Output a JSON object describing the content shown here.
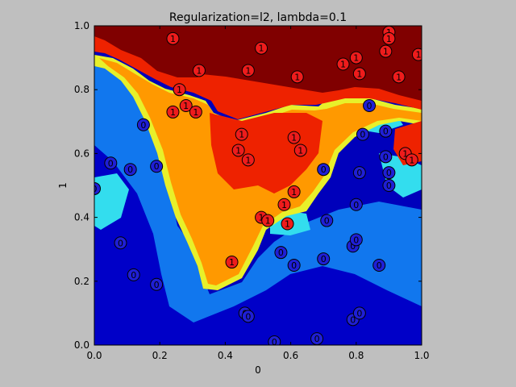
{
  "chart_data": {
    "type": "scatter",
    "title": "Regularization=l2, lambda=0.1",
    "xlabel": "0",
    "ylabel": "1",
    "xlim": [
      0.0,
      1.0
    ],
    "ylim": [
      0.0,
      1.0
    ],
    "xticks": [
      "0.0",
      "0.2",
      "0.4",
      "0.6",
      "0.8",
      "1.0"
    ],
    "yticks": [
      "0.0",
      "0.2",
      "0.4",
      "0.6",
      "0.8",
      "1.0"
    ],
    "grid": false,
    "legend": "none",
    "background_regions": {
      "description_colors": {
        "class_1_high": "#800000",
        "class_1_mid": "#ee2200",
        "class_1_low": "#ff9900",
        "boundary": "#e8f02a",
        "class_0_low": "#33ddee",
        "class_0_mid": "#1177ee",
        "class_0_high": "#0000bb"
      }
    },
    "series": [
      {
        "name": "0",
        "color": "#1f1fd6",
        "points": [
          [
            0.0,
            0.49
          ],
          [
            0.05,
            0.57
          ],
          [
            0.11,
            0.55
          ],
          [
            0.19,
            0.56
          ],
          [
            0.15,
            0.69
          ],
          [
            0.08,
            0.32
          ],
          [
            0.12,
            0.22
          ],
          [
            0.19,
            0.19
          ],
          [
            0.46,
            0.1
          ],
          [
            0.47,
            0.09
          ],
          [
            0.55,
            0.01
          ],
          [
            0.68,
            0.02
          ],
          [
            0.79,
            0.08
          ],
          [
            0.81,
            0.1
          ],
          [
            0.57,
            0.29
          ],
          [
            0.61,
            0.25
          ],
          [
            0.7,
            0.27
          ],
          [
            0.71,
            0.39
          ],
          [
            0.79,
            0.31
          ],
          [
            0.8,
            0.33
          ],
          [
            0.87,
            0.25
          ],
          [
            0.8,
            0.44
          ],
          [
            0.81,
            0.54
          ],
          [
            0.9,
            0.5
          ],
          [
            0.9,
            0.54
          ],
          [
            0.89,
            0.59
          ],
          [
            0.82,
            0.66
          ],
          [
            0.89,
            0.67
          ],
          [
            0.84,
            0.75
          ],
          [
            0.7,
            0.55
          ]
        ]
      },
      {
        "name": "1",
        "color": "#ee1c1c",
        "points": [
          [
            0.24,
            0.96
          ],
          [
            0.32,
            0.86
          ],
          [
            0.51,
            0.93
          ],
          [
            0.47,
            0.86
          ],
          [
            0.62,
            0.84
          ],
          [
            0.76,
            0.88
          ],
          [
            0.8,
            0.9
          ],
          [
            0.81,
            0.85
          ],
          [
            0.9,
            0.98
          ],
          [
            0.9,
            0.96
          ],
          [
            0.89,
            0.92
          ],
          [
            0.93,
            0.84
          ],
          [
            0.99,
            0.91
          ],
          [
            0.26,
            0.8
          ],
          [
            0.28,
            0.75
          ],
          [
            0.24,
            0.73
          ],
          [
            0.31,
            0.73
          ],
          [
            0.45,
            0.66
          ],
          [
            0.44,
            0.61
          ],
          [
            0.47,
            0.58
          ],
          [
            0.61,
            0.65
          ],
          [
            0.63,
            0.61
          ],
          [
            0.61,
            0.48
          ],
          [
            0.58,
            0.44
          ],
          [
            0.51,
            0.4
          ],
          [
            0.53,
            0.39
          ],
          [
            0.59,
            0.38
          ],
          [
            0.42,
            0.26
          ],
          [
            0.95,
            0.6
          ],
          [
            0.97,
            0.58
          ]
        ]
      }
    ]
  }
}
